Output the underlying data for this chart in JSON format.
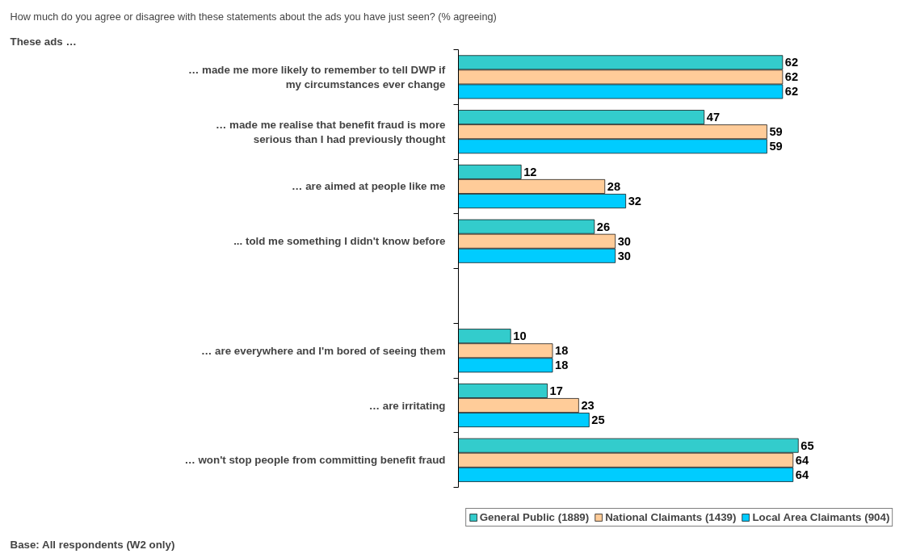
{
  "chart_data": {
    "type": "bar",
    "orientation": "horizontal",
    "title": "How much do you agree or disagree with these statements about the ads you have just seen? (% agreeing)",
    "annotations": [
      "These ads …",
      "Base:  All respondents (W2 only)"
    ],
    "categories": [
      "… made me more likely to remember to tell DWP if\nmy circumstances ever change",
      "… made me realise that benefit fraud is more\nserious than I had previously thought",
      "… are aimed at people like me",
      "... told me something I didn't know before",
      null,
      "… are everywhere and I'm bored of seeing them",
      "… are irritating",
      "… won't stop people from committing benefit fraud"
    ],
    "series": [
      {
        "name": "General Public (1889)",
        "color": "#33cccc",
        "values": [
          62,
          47,
          12,
          26,
          null,
          10,
          17,
          65
        ]
      },
      {
        "name": "National Claimants (1439)",
        "color": "#ffcc99",
        "values": [
          62,
          59,
          28,
          30,
          null,
          18,
          23,
          64
        ]
      },
      {
        "name": "Local Area Claimants (904)",
        "color": "#00ccff",
        "values": [
          62,
          59,
          32,
          30,
          null,
          18,
          25,
          64
        ]
      }
    ],
    "data_labels": true,
    "legend": "bottom",
    "grid": false,
    "tick_labels": "y"
  }
}
